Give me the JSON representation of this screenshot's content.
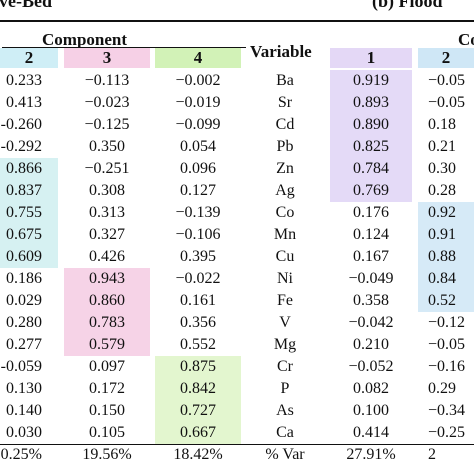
{
  "left_title": "ive-Bed",
  "right_title": "(b) Flood",
  "group_header": "Component",
  "group_header_right": "Co",
  "variable_header": "Variable",
  "columns": {
    "left": [
      "2",
      "3",
      "4"
    ],
    "right": [
      "1",
      "2"
    ]
  },
  "rows": [
    {
      "a": "0.233",
      "b": "−0.113",
      "c": "−0.002",
      "v": "Ba",
      "d": "0.919",
      "e": "−0.05"
    },
    {
      "a": "0.413",
      "b": "−0.023",
      "c": "−0.019",
      "v": "Sr",
      "d": "0.893",
      "e": "−0.05"
    },
    {
      "a": "-0.260",
      "b": "−0.125",
      "c": "−0.099",
      "v": "Cd",
      "d": "0.890",
      "e": "0.18"
    },
    {
      "a": "-0.292",
      "b": "0.350",
      "c": "0.054",
      "v": "Pb",
      "d": "0.825",
      "e": "0.21"
    },
    {
      "a": "0.866",
      "b": "−0.251",
      "c": "0.096",
      "v": "Zn",
      "d": "0.784",
      "e": "0.30"
    },
    {
      "a": "0.837",
      "b": "0.308",
      "c": "0.127",
      "v": "Ag",
      "d": "0.769",
      "e": "0.28"
    },
    {
      "a": "0.755",
      "b": "0.313",
      "c": "−0.139",
      "v": "Co",
      "d": "0.176",
      "e": "0.92"
    },
    {
      "a": "0.675",
      "b": "0.327",
      "c": "−0.106",
      "v": "Mn",
      "d": "0.124",
      "e": "0.91"
    },
    {
      "a": "0.609",
      "b": "0.426",
      "c": "0.395",
      "v": "Cu",
      "d": "0.167",
      "e": "0.88"
    },
    {
      "a": "0.186",
      "b": "0.943",
      "c": "−0.022",
      "v": "Ni",
      "d": "−0.049",
      "e": "0.84"
    },
    {
      "a": "0.029",
      "b": "0.860",
      "c": "0.161",
      "v": "Fe",
      "d": "0.358",
      "e": "0.52"
    },
    {
      "a": "0.280",
      "b": "0.783",
      "c": "0.356",
      "v": "V",
      "d": "−0.042",
      "e": "−0.12"
    },
    {
      "a": "0.277",
      "b": "0.579",
      "c": "0.552",
      "v": "Mg",
      "d": "0.210",
      "e": "−0.05"
    },
    {
      "a": "-0.059",
      "b": "0.097",
      "c": "0.875",
      "v": "Cr",
      "d": "−0.052",
      "e": "−0.16"
    },
    {
      "a": "0.130",
      "b": "0.172",
      "c": "0.842",
      "v": "P",
      "d": "0.082",
      "e": "0.29"
    },
    {
      "a": "0.140",
      "b": "0.150",
      "c": "0.727",
      "v": "As",
      "d": "0.100",
      "e": "−0.34"
    },
    {
      "a": "0.030",
      "b": "0.105",
      "c": "0.667",
      "v": "Ca",
      "d": "0.414",
      "e": "−0.25"
    },
    {
      "a": "0.25%",
      "b": "19.56%",
      "c": "18.42%",
      "v": "% Var",
      "d": "27.91%",
      "e": "2"
    }
  ],
  "highlight_colors": {
    "blue": "#d6f1f2",
    "pink": "#f6d3e7",
    "green": "#e3f6cf",
    "purple": "#e4daf7",
    "blue_right": "#d6eaf7"
  }
}
